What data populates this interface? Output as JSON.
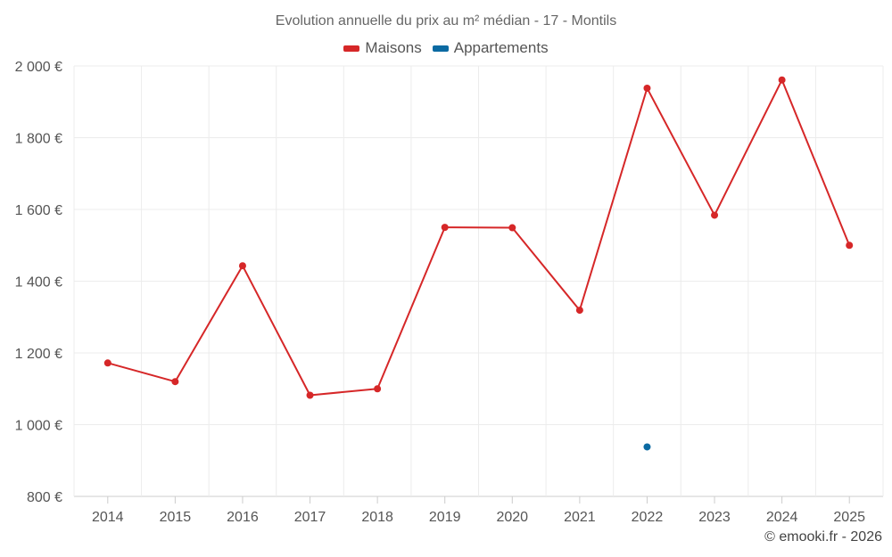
{
  "chart_data": {
    "type": "line",
    "title": "Evolution annuelle du prix au m² médian - 17 - Montils",
    "categories": [
      "2014",
      "2015",
      "2016",
      "2017",
      "2018",
      "2019",
      "2020",
      "2021",
      "2022",
      "2023",
      "2024",
      "2025"
    ],
    "series": [
      {
        "name": "Maisons",
        "color": "#d62728",
        "values": [
          1172,
          1120,
          1443,
          1082,
          1100,
          1550,
          1549,
          1319,
          1938,
          1584,
          1961,
          1500
        ]
      },
      {
        "name": "Appartements",
        "color": "#0b6aa2",
        "values": [
          null,
          null,
          null,
          null,
          null,
          null,
          null,
          null,
          938,
          null,
          null,
          null
        ]
      }
    ],
    "ylim": [
      800,
      2000
    ],
    "yticks": [
      800,
      1000,
      1200,
      1400,
      1600,
      1800,
      2000
    ],
    "ytick_labels": [
      "800 €",
      "1 000 €",
      "1 200 €",
      "1 400 €",
      "1 600 €",
      "1 800 €",
      "2 000 €"
    ],
    "xlabel": "",
    "ylabel": "",
    "grid": true,
    "legend_position": "top-center"
  },
  "credit": "© emooki.fr - 2026"
}
